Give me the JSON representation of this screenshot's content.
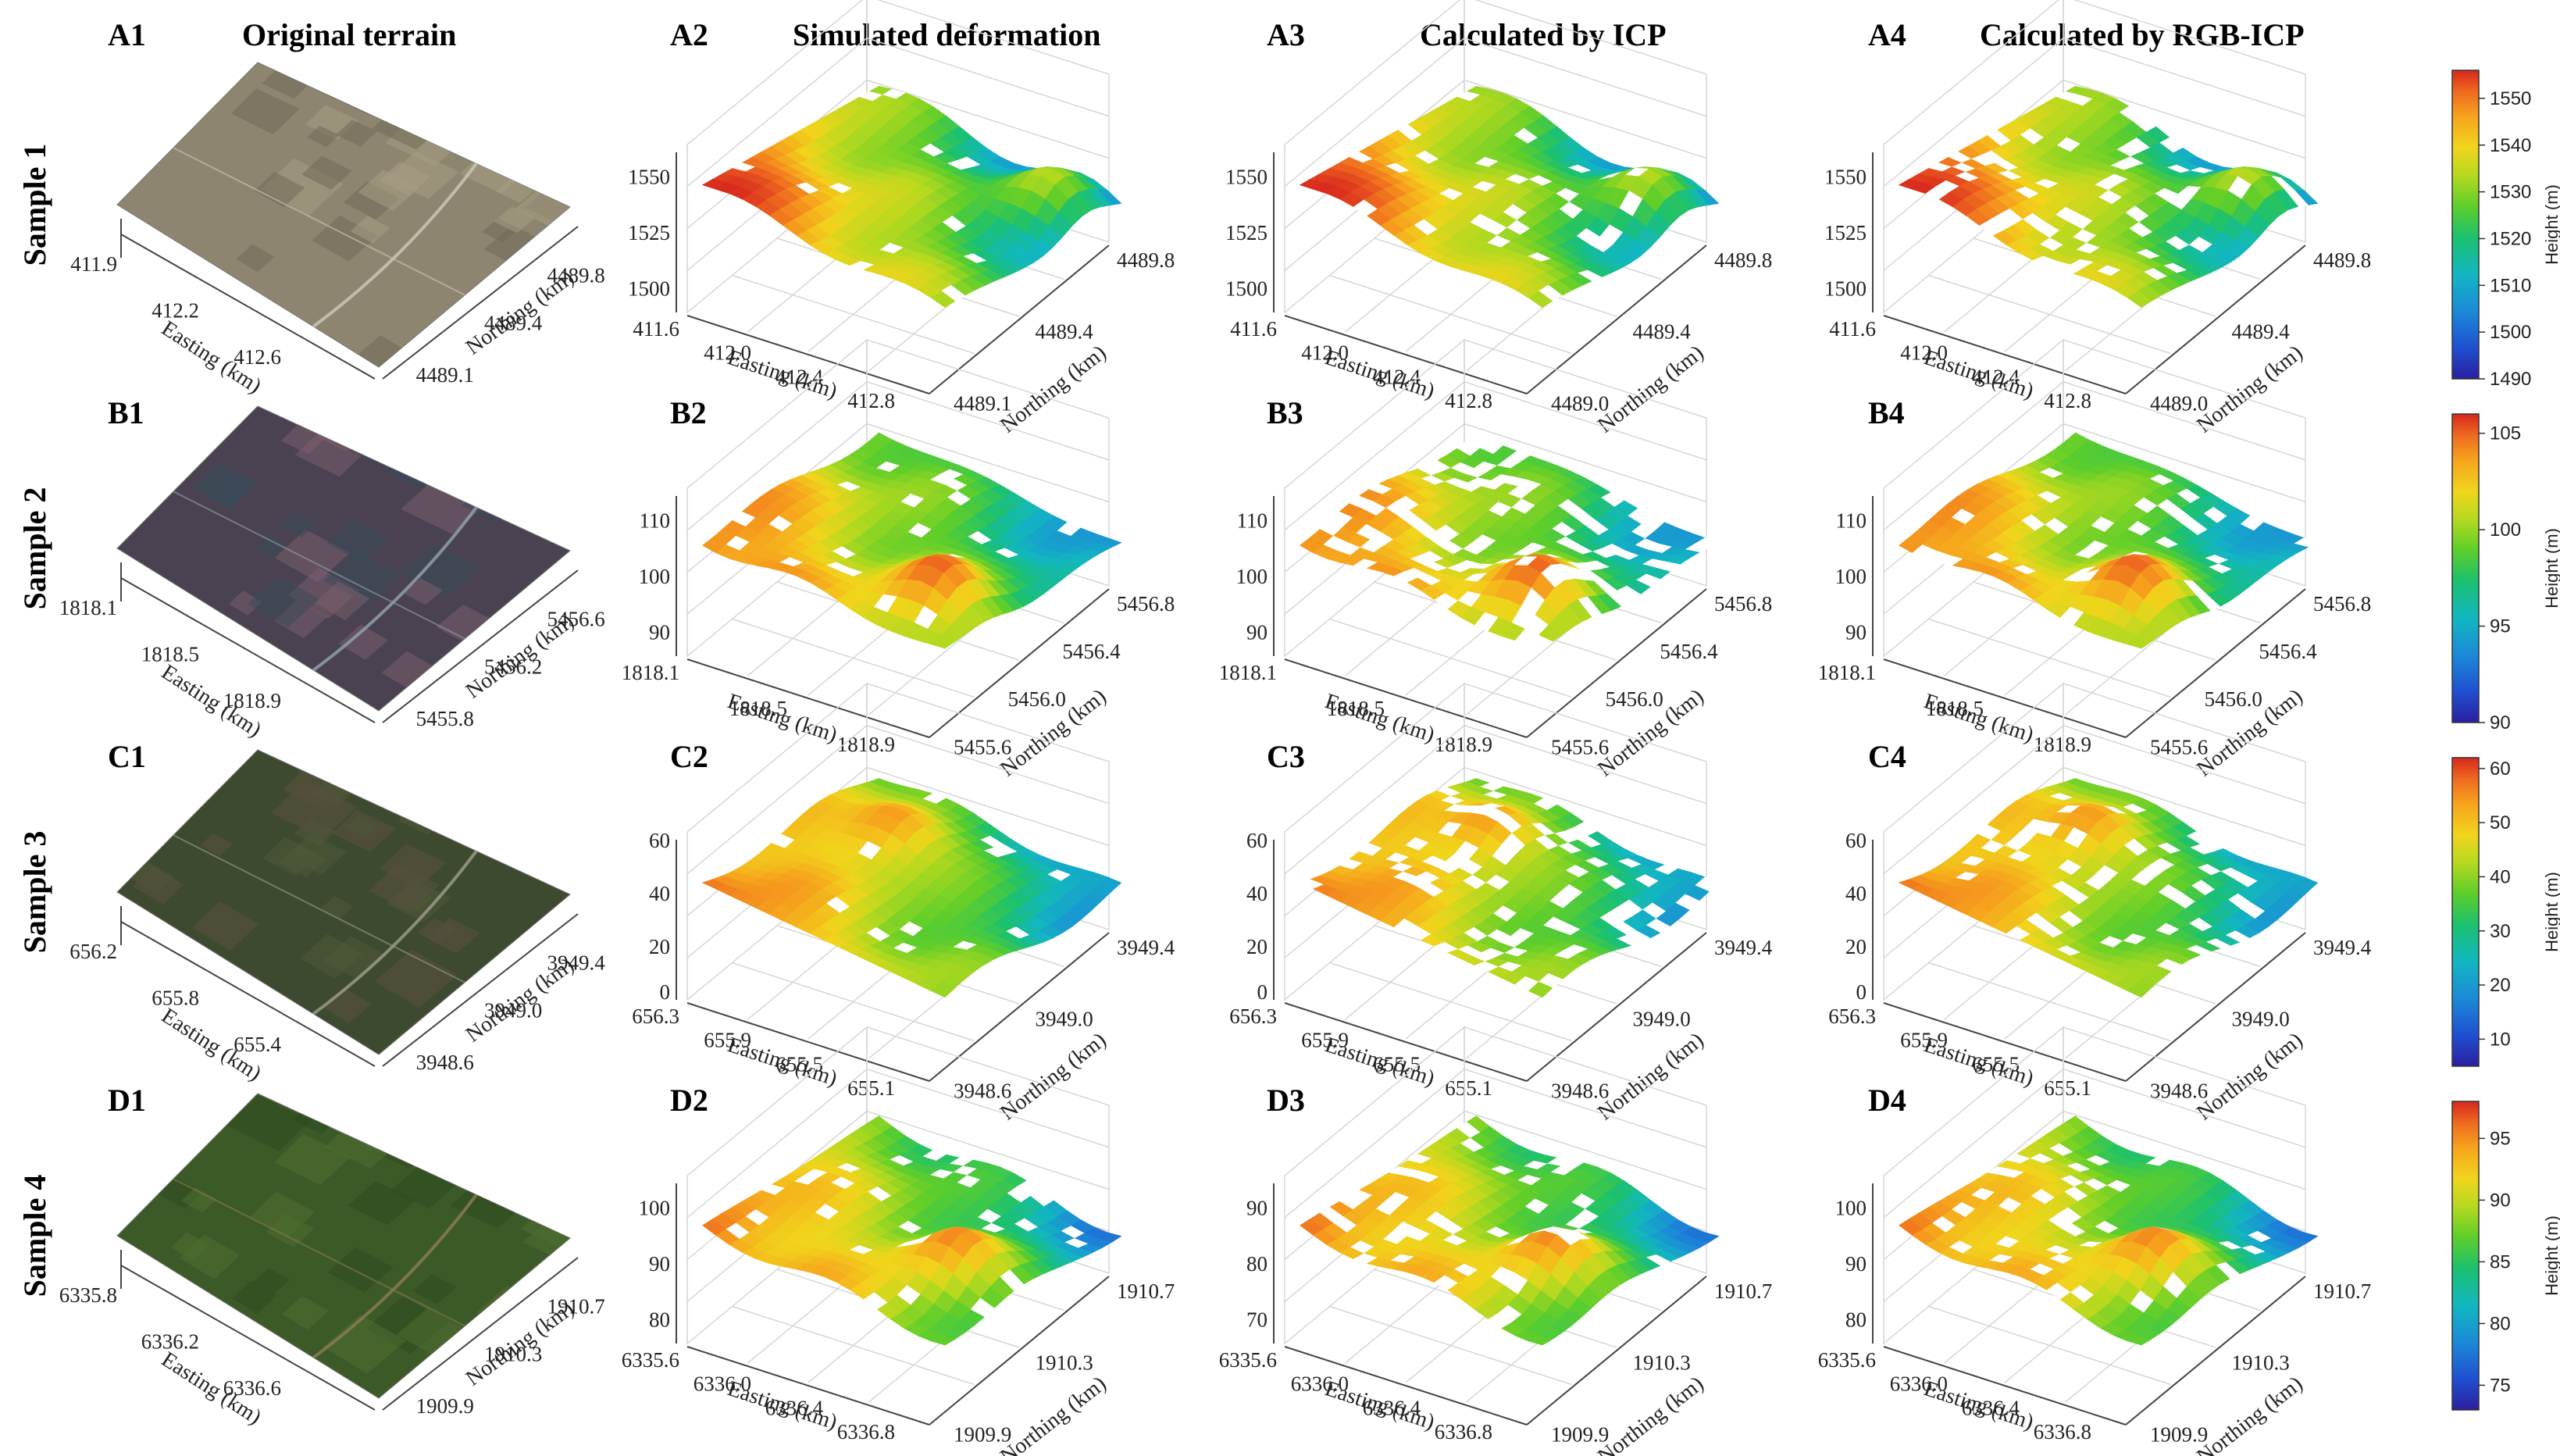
{
  "figure": {
    "col_titles": [
      {
        "tag": "A1",
        "title": "Original terrain"
      },
      {
        "tag": "A2",
        "title": "Simulated deformation"
      },
      {
        "tag": "A3",
        "title": "Calculated by ICP"
      },
      {
        "tag": "A4",
        "title": "Calculated by RGB-ICP"
      }
    ],
    "panel_tags": [
      [
        "A1",
        "A2",
        "A3",
        "A4"
      ],
      [
        "B1",
        "B2",
        "B3",
        "B4"
      ],
      [
        "C1",
        "C2",
        "C3",
        "C4"
      ],
      [
        "D1",
        "D2",
        "D3",
        "D4"
      ]
    ],
    "row_labels": [
      "Sample 1",
      "Sample 2",
      "Sample 3",
      "Sample 4"
    ]
  },
  "chart_data": [
    {
      "type": "surface",
      "sample": "Sample 1",
      "image_axes": {
        "x_label": "Easting (km)",
        "y_label": "Northing (km)",
        "x_ticks": [
          "411.9",
          "412.2",
          "412.6"
        ],
        "y_ticks": [
          "4489.8",
          "4489.4",
          "4489.1"
        ]
      },
      "surface_axes": [
        {
          "panel": "A2",
          "z_ticks": [
            "1550",
            "1525",
            "1500"
          ],
          "x_label": "Easting (km)",
          "y_label": "Northing (km)",
          "x_ticks": [
            "411.6",
            "412.0",
            "412.4",
            "412.8"
          ],
          "y_ticks": [
            "4489.8",
            "4489.4",
            "4489.1"
          ],
          "gap_fraction": 0.03
        },
        {
          "panel": "A3",
          "z_ticks": [
            "1550",
            "1525",
            "1500"
          ],
          "x_label": "Easting (km)",
          "y_label": "Northing (km)",
          "x_ticks": [
            "411.6",
            "412.0",
            "412.4",
            "412.8"
          ],
          "y_ticks": [
            "4489.8",
            "4489.4",
            "4489.0"
          ],
          "gap_fraction": 0.1
        },
        {
          "panel": "A4",
          "z_ticks": [
            "1550",
            "1525",
            "1500"
          ],
          "x_label": "Easting (km)",
          "y_label": "Northing (km)",
          "x_ticks": [
            "411.6",
            "412.0",
            "412.4",
            "412.8"
          ],
          "y_ticks": [
            "4489.8",
            "4489.4",
            "4489.0"
          ],
          "gap_fraction": 0.14
        }
      ],
      "colorbar": {
        "label": "Height (m)",
        "ticks": [
          "1550",
          "1540",
          "1530",
          "1520",
          "1510",
          "1500",
          "1490"
        ],
        "range": [
          1490,
          1556
        ]
      }
    },
    {
      "type": "surface",
      "sample": "Sample 2",
      "image_axes": {
        "x_label": "Easting (km)",
        "y_label": "Northing (km)",
        "x_ticks": [
          "1818.1",
          "1818.5",
          "1818.9"
        ],
        "y_ticks": [
          "5456.6",
          "5456.2",
          "5455.8"
        ]
      },
      "surface_axes": [
        {
          "panel": "B2",
          "z_ticks": [
            "110",
            "100",
            "90"
          ],
          "x_label": "Easting (km)",
          "y_label": "Northing (km)",
          "x_ticks": [
            "1818.1",
            "1818.5",
            "1818.9"
          ],
          "y_ticks": [
            "5456.8",
            "5456.4",
            "5456.0",
            "5455.6"
          ],
          "gap_fraction": 0.07
        },
        {
          "panel": "B3",
          "z_ticks": [
            "110",
            "100",
            "90"
          ],
          "x_label": "Easting (km)",
          "y_label": "Northing (km)",
          "x_ticks": [
            "1818.1",
            "1818.5",
            "1818.9"
          ],
          "y_ticks": [
            "5456.8",
            "5456.4",
            "5456.0",
            "5455.6"
          ],
          "gap_fraction": 0.34
        },
        {
          "panel": "B4",
          "z_ticks": [
            "110",
            "100",
            "90"
          ],
          "x_label": "Easting (km)",
          "y_label": "Northing (km)",
          "x_ticks": [
            "1818.1",
            "1818.5",
            "1818.9"
          ],
          "y_ticks": [
            "5456.8",
            "5456.4",
            "5456.0",
            "5455.6"
          ],
          "gap_fraction": 0.12
        }
      ],
      "colorbar": {
        "label": "Height (m)",
        "ticks": [
          "105",
          "100",
          "95",
          "90"
        ],
        "range": [
          90,
          106
        ]
      }
    },
    {
      "type": "surface",
      "sample": "Sample 3",
      "image_axes": {
        "x_label": "Easting (km)",
        "y_label": "Northing (km)",
        "x_ticks": [
          "656.2",
          "655.8",
          "655.4"
        ],
        "y_ticks": [
          "3949.4",
          "3949.0",
          "3948.6"
        ]
      },
      "surface_axes": [
        {
          "panel": "C2",
          "z_ticks": [
            "60",
            "40",
            "20",
            "0"
          ],
          "x_label": "Easting (km)",
          "y_label": "Northing (km)",
          "x_ticks": [
            "656.3",
            "655.9",
            "655.5",
            "655.1"
          ],
          "y_ticks": [
            "3949.4",
            "3949.0",
            "3948.6"
          ],
          "gap_fraction": 0.04
        },
        {
          "panel": "C3",
          "z_ticks": [
            "60",
            "40",
            "20",
            "0"
          ],
          "x_label": "Easting (km)",
          "y_label": "Northing (km)",
          "x_ticks": [
            "656.3",
            "655.9",
            "655.5",
            "655.1"
          ],
          "y_ticks": [
            "3949.4",
            "3949.0",
            "3948.6"
          ],
          "gap_fraction": 0.22
        },
        {
          "panel": "C4",
          "z_ticks": [
            "60",
            "40",
            "20",
            "0"
          ],
          "x_label": "Easting (km)",
          "y_label": "Northing (km)",
          "x_ticks": [
            "656.3",
            "655.9",
            "655.5",
            "655.1"
          ],
          "y_ticks": [
            "3949.4",
            "3949.0",
            "3948.6"
          ],
          "gap_fraction": 0.12
        }
      ],
      "colorbar": {
        "label": "Height (m)",
        "ticks": [
          "60",
          "50",
          "40",
          "30",
          "20",
          "10"
        ],
        "range": [
          5,
          62
        ]
      }
    },
    {
      "type": "surface",
      "sample": "Sample 4",
      "image_axes": {
        "x_label": "Easting (km)",
        "y_label": "Northing (km)",
        "x_ticks": [
          "6335.8",
          "6336.2",
          "6336.6"
        ],
        "y_ticks": [
          "1910.7",
          "1910.3",
          "1909.9"
        ]
      },
      "surface_axes": [
        {
          "panel": "D2",
          "z_ticks": [
            "100",
            "90",
            "80"
          ],
          "x_label": "Easting (km)",
          "y_label": "Northing (km)",
          "x_ticks": [
            "6335.6",
            "6336.0",
            "6336.4",
            "6336.8"
          ],
          "y_ticks": [
            "1910.7",
            "1910.3",
            "1909.9"
          ],
          "gap_fraction": 0.1
        },
        {
          "panel": "D3",
          "z_ticks": [
            "90",
            "80",
            "70"
          ],
          "x_label": "Easting (km)",
          "y_label": "Northing (km)",
          "x_ticks": [
            "6335.6",
            "6336.0",
            "6336.4",
            "6336.8"
          ],
          "y_ticks": [
            "1910.7",
            "1910.3",
            "1909.9"
          ],
          "gap_fraction": 0.16
        },
        {
          "panel": "D4",
          "z_ticks": [
            "100",
            "90",
            "80"
          ],
          "x_label": "Easting (km)",
          "y_label": "Northing (km)",
          "x_ticks": [
            "6335.6",
            "6336.0",
            "6336.4",
            "6336.8"
          ],
          "y_ticks": [
            "1910.7",
            "1910.3",
            "1909.9"
          ],
          "gap_fraction": 0.1
        }
      ],
      "colorbar": {
        "label": "Height (m)",
        "ticks": [
          "95",
          "90",
          "85",
          "80",
          "75"
        ],
        "range": [
          73,
          98
        ]
      }
    }
  ],
  "colors": {
    "jet": [
      "#2a1fa0",
      "#1f4fd0",
      "#1c8ad8",
      "#12b7c0",
      "#1cc16e",
      "#5fce2a",
      "#b6d91f",
      "#f1d51c",
      "#f6a41d",
      "#ef6a1f",
      "#d8281e"
    ],
    "terrain": [
      {
        "base": "#8e8570",
        "patch1": "#a59c84",
        "patch2": "#6f6a58",
        "road": "#c9c5b8"
      },
      {
        "base": "#4a4250",
        "patch1": "#7a5f6e",
        "patch2": "#3b4a58",
        "road": "#8fa0a8"
      },
      {
        "base": "#3e4a2f",
        "patch1": "#4f5a38",
        "patch2": "#5a5040",
        "road": "#9a9a8a"
      },
      {
        "base": "#3c5a28",
        "patch1": "#4f6e30",
        "patch2": "#2e4a1f",
        "road": "#8a7a55"
      }
    ]
  }
}
